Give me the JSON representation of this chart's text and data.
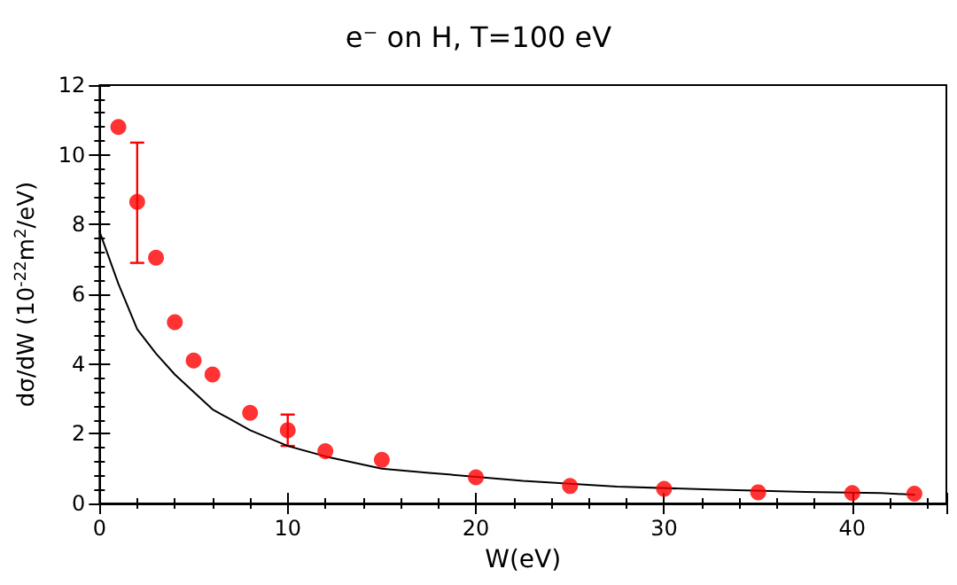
{
  "chart_data": {
    "type": "scatter",
    "title": "e⁻ on H, T=100 eV",
    "xlabel": "W(eV)",
    "ylabel": "dσ/dW (10$^{-22}$m$^{2}$/eV)",
    "xlim": [
      0,
      45
    ],
    "xticks": [
      0,
      10,
      20,
      30,
      40
    ],
    "ylim": [
      0,
      12
    ],
    "yticks": [
      0,
      2,
      4,
      6,
      8,
      10,
      12
    ],
    "grid": false,
    "marker": "circle",
    "series": [
      {
        "color": "#ff0000",
        "x": [
          1,
          2,
          3,
          4,
          5,
          6,
          8,
          10,
          12,
          15,
          20,
          25,
          30,
          35,
          40,
          43.3
        ],
        "values": [
          10.8,
          8.65,
          7.05,
          5.2,
          4.1,
          3.7,
          2.6,
          2.1,
          1.5,
          1.25,
          0.75,
          0.5,
          0.42,
          0.32,
          0.3,
          0.28
        ],
        "errors": [
          null,
          [
            6.9,
            10.35
          ],
          null,
          null,
          null,
          null,
          null,
          [
            1.65,
            2.55
          ],
          null,
          null,
          null,
          null,
          null,
          null,
          null,
          null
        ]
      },
      {
        "type": "line",
        "color": "#000000",
        "marker": "none",
        "x": [
          0,
          1,
          2,
          3,
          4,
          6,
          8,
          10,
          12,
          15,
          17.5,
          22.5,
          27.5,
          32.5,
          37.5,
          41.5,
          43.3
        ],
        "values": [
          7.8,
          6.3,
          5.0,
          4.3,
          3.7,
          2.7,
          2.1,
          1.65,
          1.35,
          1.0,
          0.88,
          0.65,
          0.48,
          0.4,
          0.33,
          0.3,
          0.25
        ]
      }
    ]
  }
}
